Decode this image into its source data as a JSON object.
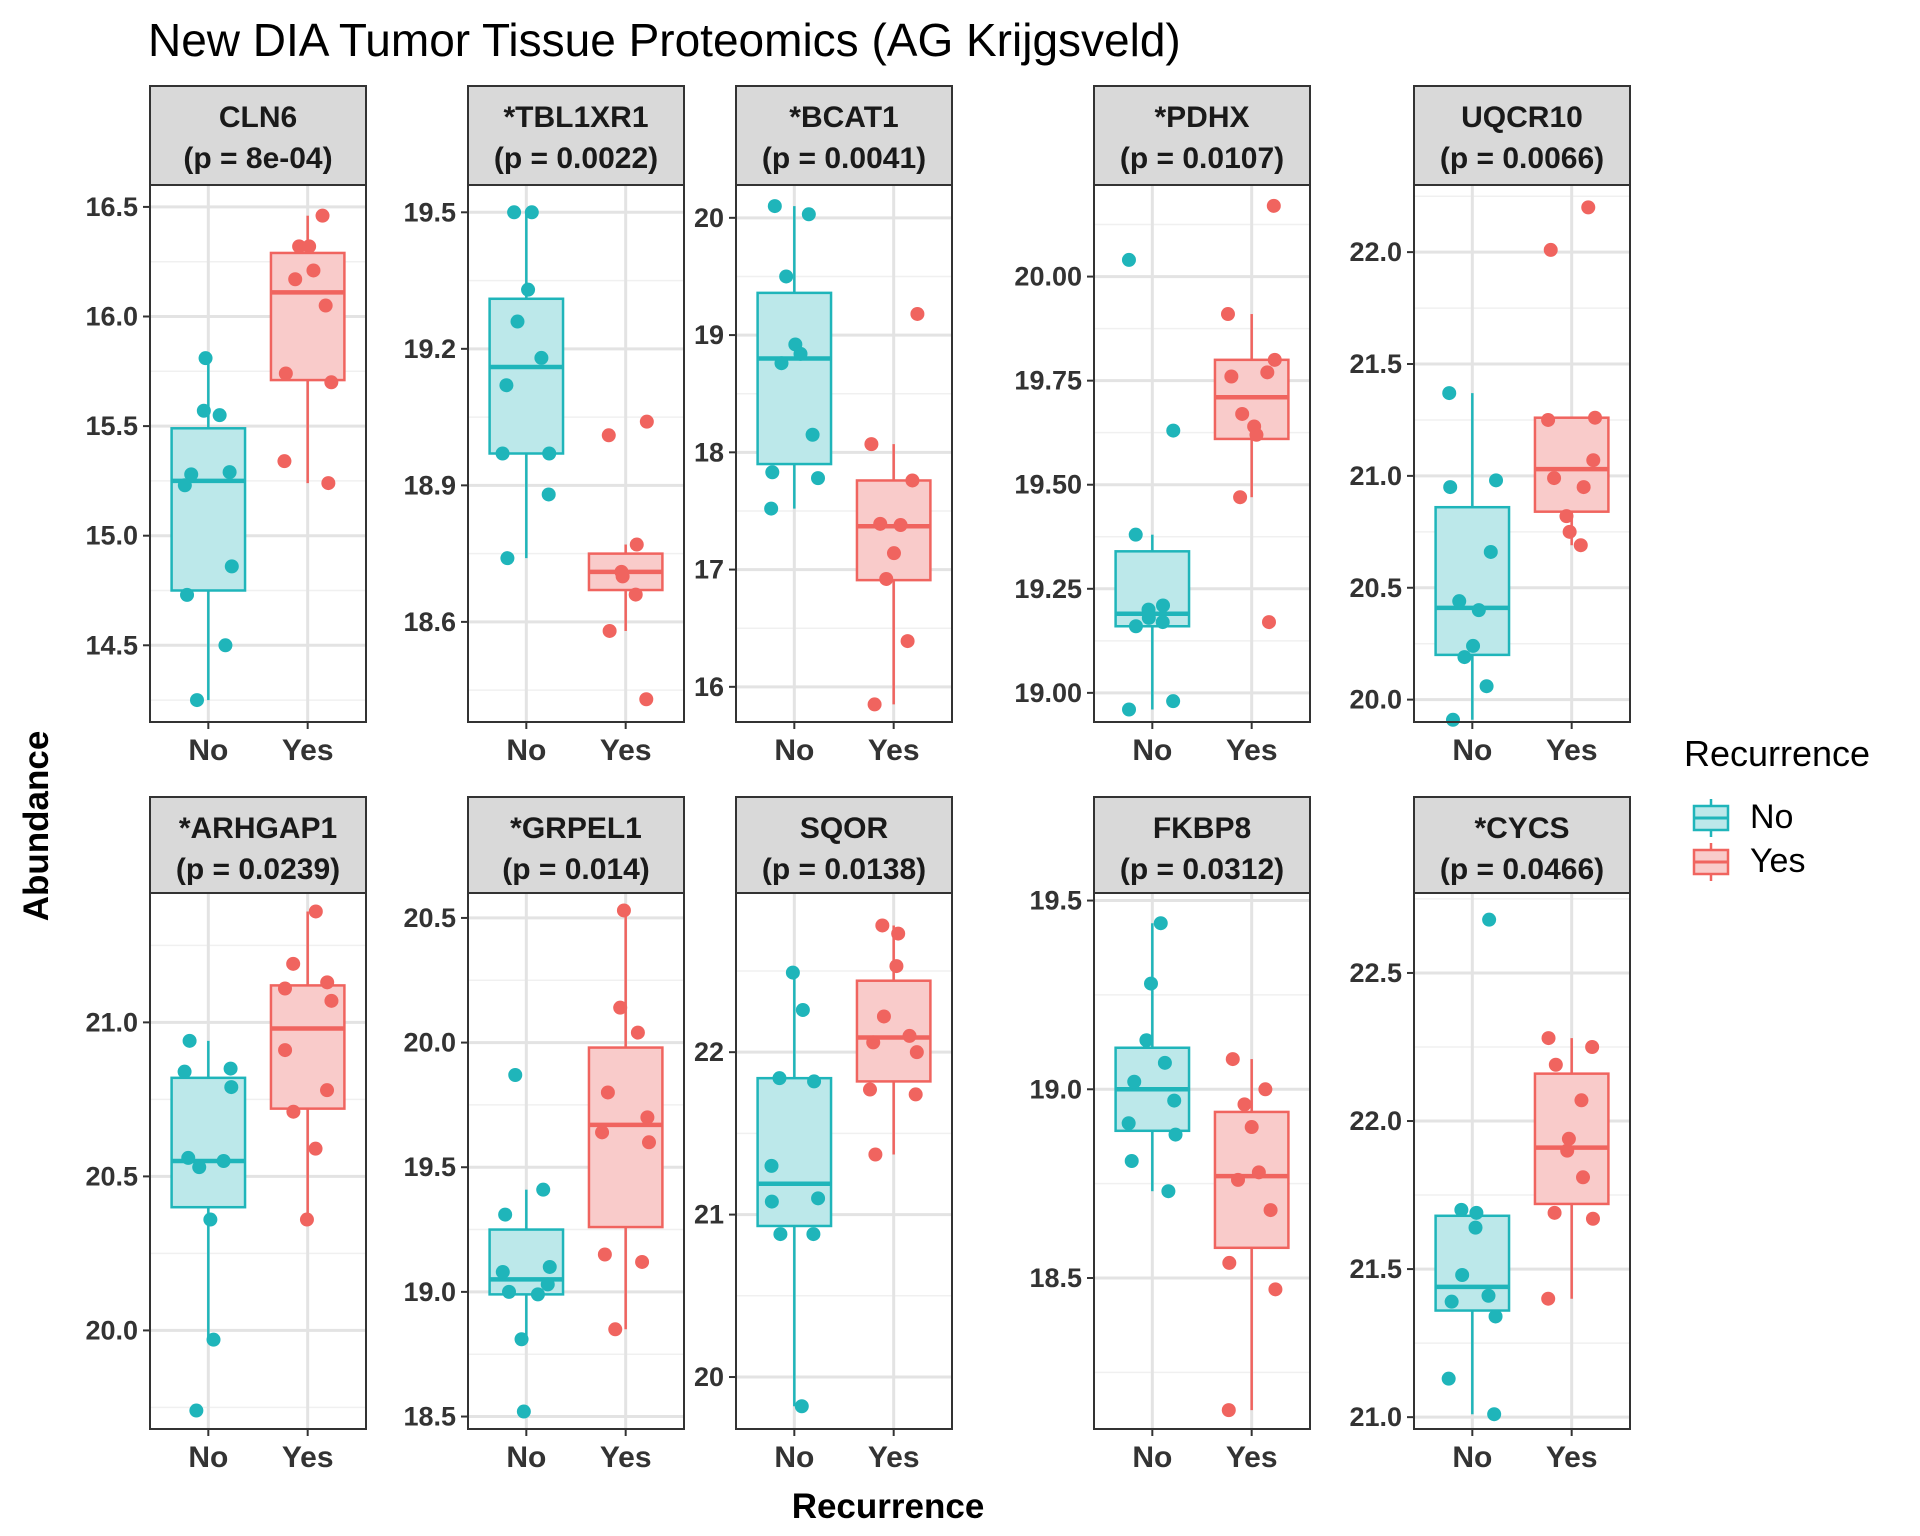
{
  "chart_data": {
    "type": "boxplot",
    "title": "New DIA Tumor Tissue Proteomics (AG Krijgsveld)",
    "xlabel": "Recurrence",
    "ylabel": "Abundance",
    "legend": {
      "title": "Recurrence",
      "position": "right",
      "entries": [
        {
          "name": "No",
          "color": "#1FB5BA",
          "fill": "#BCE8EA"
        },
        {
          "name": "Yes",
          "color": "#F0645F",
          "fill": "#F9CBCA"
        }
      ]
    },
    "categories": [
      "No",
      "Yes"
    ],
    "grid": true,
    "panels": [
      {
        "name": "CLN6",
        "pvalue": "(p = 8e-04)",
        "ylim": [
          14.15,
          16.6
        ],
        "yticks": [
          "14.5",
          "15.0",
          "15.5",
          "16.0",
          "16.5"
        ],
        "ytick_values": [
          14.5,
          15.0,
          15.5,
          16.0,
          16.5
        ],
        "groups": {
          "No": {
            "box": {
              "q1": 14.75,
              "median": 15.25,
              "q3": 15.49,
              "lower": 14.25,
              "upper": 15.81
            },
            "points": [
              15.81,
              15.57,
              15.55,
              15.28,
              15.29,
              15.23,
              14.86,
              14.73,
              14.5,
              14.25
            ]
          },
          "Yes": {
            "box": {
              "q1": 15.71,
              "median": 16.11,
              "q3": 16.29,
              "lower": 15.24,
              "upper": 16.46
            },
            "points": [
              16.46,
              16.32,
              16.32,
              16.21,
              16.17,
              16.05,
              15.74,
              15.7,
              15.34,
              15.24
            ]
          }
        }
      },
      {
        "name": "*TBL1XR1",
        "pvalue": "(p = 0.0022)",
        "ylim": [
          18.38,
          19.56
        ],
        "yticks": [
          "18.6",
          "18.9",
          "19.2",
          "19.5"
        ],
        "ytick_values": [
          18.6,
          18.9,
          19.2,
          19.5
        ],
        "groups": {
          "No": {
            "box": {
              "q1": 18.97,
              "median": 19.16,
              "q3": 19.31,
              "lower": 18.74,
              "upper": 19.5
            },
            "points": [
              19.5,
              19.5,
              19.33,
              19.26,
              19.18,
              19.12,
              18.97,
              18.97,
              18.88,
              18.74
            ]
          },
          "Yes": {
            "box": {
              "q1": 18.67,
              "median": 18.71,
              "q3": 18.75,
              "lower": 18.58,
              "upper": 18.77
            },
            "points": [
              19.04,
              19.01,
              18.77,
              18.71,
              18.7,
              18.66,
              18.58,
              18.43
            ]
          }
        }
      },
      {
        "name": "*BCAT1",
        "pvalue": "(p = 0.0041)",
        "ylim": [
          15.7,
          20.28
        ],
        "yticks": [
          "16",
          "17",
          "18",
          "19",
          "20"
        ],
        "ytick_values": [
          16,
          17,
          18,
          19,
          20
        ],
        "groups": {
          "No": {
            "box": {
              "q1": 17.9,
              "median": 18.8,
              "q3": 19.36,
              "lower": 17.52,
              "upper": 20.1
            },
            "points": [
              20.1,
              20.03,
              19.5,
              18.92,
              18.84,
              18.76,
              18.15,
              17.83,
              17.78,
              17.52
            ]
          },
          "Yes": {
            "box": {
              "q1": 16.91,
              "median": 17.37,
              "q3": 17.76,
              "lower": 15.85,
              "upper": 18.07
            },
            "points": [
              19.18,
              18.07,
              17.76,
              17.39,
              17.38,
              17.14,
              16.92,
              16.39,
              15.85
            ]
          }
        }
      },
      {
        "name": "*PDHX",
        "pvalue": "(p = 0.0107)",
        "ylim": [
          18.93,
          20.22
        ],
        "yticks": [
          "19.00",
          "19.25",
          "19.50",
          "19.75",
          "20.00"
        ],
        "ytick_values": [
          19.0,
          19.25,
          19.5,
          19.75,
          20.0
        ],
        "groups": {
          "No": {
            "box": {
              "q1": 19.16,
              "median": 19.19,
              "q3": 19.34,
              "lower": 18.96,
              "upper": 19.38
            },
            "points": [
              20.04,
              19.63,
              19.38,
              19.21,
              19.2,
              19.18,
              19.17,
              19.16,
              18.98,
              18.96
            ]
          },
          "Yes": {
            "box": {
              "q1": 19.61,
              "median": 19.71,
              "q3": 19.8,
              "lower": 19.47,
              "upper": 19.91
            },
            "points": [
              20.17,
              19.91,
              19.8,
              19.76,
              19.77,
              19.67,
              19.64,
              19.62,
              19.47,
              19.17
            ]
          }
        }
      },
      {
        "name": "UQCR10",
        "pvalue": "(p = 0.0066)",
        "ylim": [
          19.9,
          22.3
        ],
        "yticks": [
          "20.0",
          "20.5",
          "21.0",
          "21.5",
          "22.0"
        ],
        "ytick_values": [
          20.0,
          20.5,
          21.0,
          21.5,
          22.0
        ],
        "groups": {
          "No": {
            "box": {
              "q1": 20.2,
              "median": 20.41,
              "q3": 20.86,
              "lower": 19.91,
              "upper": 21.37
            },
            "points": [
              21.37,
              20.98,
              20.95,
              20.66,
              20.44,
              20.4,
              20.24,
              20.19,
              20.06,
              19.91
            ]
          },
          "Yes": {
            "box": {
              "q1": 20.84,
              "median": 21.03,
              "q3": 21.26,
              "lower": 20.69,
              "upper": 21.26
            },
            "points": [
              22.2,
              22.01,
              21.26,
              21.25,
              21.07,
              20.99,
              20.95,
              20.82,
              20.75,
              20.69
            ]
          }
        }
      },
      {
        "name": "*ARHGAP1",
        "pvalue": "(p = 0.0239)",
        "ylim": [
          19.68,
          21.42
        ],
        "yticks": [
          "20.0",
          "20.5",
          "21.0"
        ],
        "ytick_values": [
          20.0,
          20.5,
          21.0
        ],
        "groups": {
          "No": {
            "box": {
              "q1": 20.4,
              "median": 20.55,
              "q3": 20.82,
              "lower": 19.97,
              "upper": 20.94
            },
            "points": [
              20.94,
              20.85,
              20.84,
              20.79,
              20.56,
              20.55,
              20.53,
              20.36,
              19.97,
              19.74
            ]
          },
          "Yes": {
            "box": {
              "q1": 20.72,
              "median": 20.98,
              "q3": 21.12,
              "lower": 20.36,
              "upper": 21.36
            },
            "points": [
              21.36,
              21.19,
              21.13,
              21.11,
              21.07,
              20.91,
              20.78,
              20.71,
              20.59,
              20.36
            ]
          }
        }
      },
      {
        "name": "*GRPEL1",
        "pvalue": "(p = 0.014)",
        "ylim": [
          18.45,
          20.6
        ],
        "yticks": [
          "18.5",
          "19.0",
          "19.5",
          "20.0",
          "20.5"
        ],
        "ytick_values": [
          18.5,
          19.0,
          19.5,
          20.0,
          20.5
        ],
        "groups": {
          "No": {
            "box": {
              "q1": 18.99,
              "median": 19.05,
              "q3": 19.25,
              "lower": 18.81,
              "upper": 19.41
            },
            "points": [
              19.87,
              19.41,
              19.31,
              19.1,
              19.08,
              19.03,
              19.0,
              18.99,
              18.81,
              18.52
            ]
          },
          "Yes": {
            "box": {
              "q1": 19.26,
              "median": 19.67,
              "q3": 19.98,
              "lower": 18.85,
              "upper": 20.53
            },
            "points": [
              20.53,
              20.14,
              20.04,
              19.8,
              19.7,
              19.64,
              19.6,
              19.15,
              19.12,
              18.85
            ]
          }
        }
      },
      {
        "name": "SQOR",
        "pvalue": "(p = 0.0138)",
        "ylim": [
          19.68,
          22.98
        ],
        "yticks": [
          "20",
          "21",
          "22"
        ],
        "ytick_values": [
          20,
          21,
          22
        ],
        "groups": {
          "No": {
            "box": {
              "q1": 20.93,
              "median": 21.19,
              "q3": 21.84,
              "lower": 19.82,
              "upper": 22.49
            },
            "points": [
              22.49,
              22.26,
              21.84,
              21.82,
              21.3,
              21.1,
              21.08,
              20.88,
              20.88,
              19.82
            ]
          },
          "Yes": {
            "box": {
              "q1": 21.82,
              "median": 22.09,
              "q3": 22.44,
              "lower": 21.37,
              "upper": 22.78
            },
            "points": [
              22.78,
              22.73,
              22.53,
              22.22,
              22.1,
              22.06,
              22.0,
              21.77,
              21.74,
              21.37
            ]
          }
        }
      },
      {
        "name": "FKBP8",
        "pvalue": "(p = 0.0312)",
        "ylim": [
          18.1,
          19.52
        ],
        "yticks": [
          "18.5",
          "19.0",
          "19.5"
        ],
        "ytick_values": [
          18.5,
          19.0,
          19.5
        ],
        "groups": {
          "No": {
            "box": {
              "q1": 18.89,
              "median": 19.0,
              "q3": 19.11,
              "lower": 18.73,
              "upper": 19.44
            },
            "points": [
              19.44,
              19.28,
              19.13,
              19.07,
              19.02,
              18.97,
              18.91,
              18.88,
              18.81,
              18.73
            ]
          },
          "Yes": {
            "box": {
              "q1": 18.58,
              "median": 18.77,
              "q3": 18.94,
              "lower": 18.15,
              "upper": 19.08
            },
            "points": [
              19.08,
              19.0,
              18.96,
              18.9,
              18.78,
              18.76,
              18.68,
              18.54,
              18.47,
              18.15
            ]
          }
        }
      },
      {
        "name": "*CYCS",
        "pvalue": "(p = 0.0466)",
        "ylim": [
          20.96,
          22.77
        ],
        "yticks": [
          "21.0",
          "21.5",
          "22.0",
          "22.5"
        ],
        "ytick_values": [
          21.0,
          21.5,
          22.0,
          22.5
        ],
        "groups": {
          "No": {
            "box": {
              "q1": 21.36,
              "median": 21.44,
              "q3": 21.68,
              "lower": 21.01,
              "upper": 21.7
            },
            "points": [
              22.68,
              21.7,
              21.69,
              21.64,
              21.48,
              21.41,
              21.39,
              21.34,
              21.13,
              21.01
            ]
          },
          "Yes": {
            "box": {
              "q1": 21.72,
              "median": 21.91,
              "q3": 22.16,
              "lower": 21.4,
              "upper": 22.28
            },
            "points": [
              22.28,
              22.25,
              22.19,
              22.07,
              21.94,
              21.9,
              21.81,
              21.69,
              21.67,
              21.4
            ]
          }
        }
      }
    ]
  }
}
